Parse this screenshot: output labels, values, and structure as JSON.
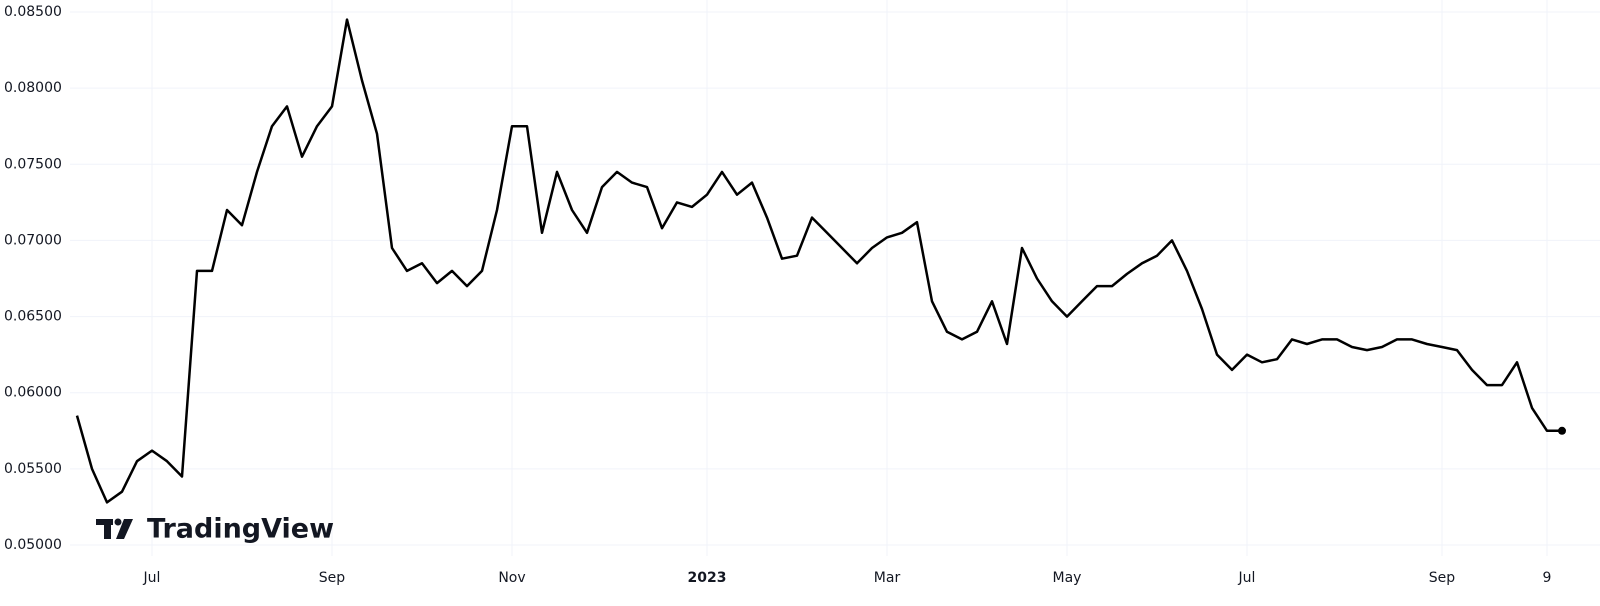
{
  "chart_data": {
    "type": "line",
    "watermark": "TradingView",
    "categories": [
      null,
      null,
      null,
      null,
      null,
      "Jul",
      null,
      null,
      null,
      null,
      null,
      null,
      null,
      null,
      null,
      null,
      null,
      "Sep",
      null,
      null,
      null,
      null,
      null,
      null,
      null,
      null,
      null,
      null,
      null,
      "Nov",
      null,
      null,
      null,
      null,
      null,
      null,
      null,
      null,
      null,
      null,
      null,
      null,
      "2023",
      null,
      null,
      null,
      null,
      null,
      null,
      null,
      null,
      null,
      null,
      null,
      "Mar",
      null,
      null,
      null,
      null,
      null,
      null,
      null,
      null,
      null,
      null,
      null,
      "May",
      null,
      null,
      null,
      null,
      null,
      null,
      null,
      null,
      null,
      null,
      null,
      "Jul",
      null,
      null,
      null,
      null,
      null,
      null,
      null,
      null,
      null,
      null,
      null,
      null,
      "Sep",
      null,
      null,
      null,
      null,
      null,
      null,
      "9",
      null
    ],
    "series": [
      {
        "color": "#000000",
        "values": [
          0.0585,
          0.055,
          0.0528,
          0.0535,
          0.0555,
          0.0562,
          0.0555,
          0.0545,
          0.068,
          0.068,
          0.072,
          0.071,
          0.0745,
          0.0775,
          0.0788,
          0.0755,
          0.0775,
          0.0788,
          0.0845,
          0.0805,
          0.077,
          0.0695,
          0.068,
          0.0685,
          0.0672,
          0.068,
          0.067,
          0.068,
          0.072,
          0.0775,
          0.0775,
          0.0705,
          0.0745,
          0.072,
          0.0705,
          0.0735,
          0.0745,
          0.0738,
          0.0735,
          0.0708,
          0.0725,
          0.0722,
          0.073,
          0.0745,
          0.073,
          0.0738,
          0.0715,
          0.0688,
          0.069,
          0.0715,
          0.0705,
          0.0695,
          0.0685,
          0.0695,
          0.0702,
          0.0705,
          0.0712,
          0.066,
          0.064,
          0.0635,
          0.064,
          0.066,
          0.0632,
          0.0695,
          0.0675,
          0.066,
          0.065,
          0.066,
          0.067,
          0.067,
          0.0678,
          0.0685,
          0.069,
          0.07,
          0.068,
          0.0655,
          0.0625,
          0.0615,
          0.0625,
          0.062,
          0.0622,
          0.0635,
          0.0632,
          0.0635,
          0.0635,
          0.063,
          0.0628,
          0.063,
          0.0635,
          0.0635,
          0.0632,
          0.063,
          0.0628,
          0.0615,
          0.0605,
          0.0605,
          0.062,
          0.059,
          0.0575,
          0.0575
        ]
      }
    ],
    "ylim": [
      0.05,
      0.085
    ],
    "yticks": [
      {
        "value": 0.05,
        "label": "0.05000"
      },
      {
        "value": 0.055,
        "label": "0.05500"
      },
      {
        "value": 0.06,
        "label": "0.06000"
      },
      {
        "value": 0.065,
        "label": "0.06500"
      },
      {
        "value": 0.07,
        "label": "0.07000"
      },
      {
        "value": 0.075,
        "label": "0.07500"
      },
      {
        "value": 0.08,
        "label": "0.08000"
      },
      {
        "value": 0.085,
        "label": "0.08500"
      }
    ],
    "grid": true
  }
}
